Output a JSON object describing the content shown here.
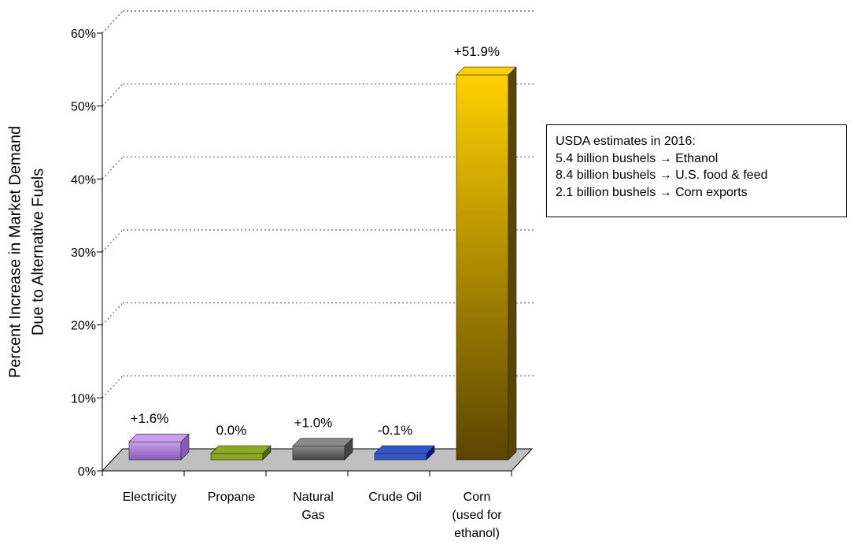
{
  "chart_data": {
    "type": "bar",
    "ylabel": [
      "Percent Increase in Market Demand",
      "Due to Alternative Fuels"
    ],
    "xlabel": "",
    "ylim": [
      0,
      60
    ],
    "ytick_values": [
      0,
      10,
      20,
      30,
      40,
      50,
      60
    ],
    "ytick_labels": [
      "0%",
      "10%",
      "20%",
      "30%",
      "40%",
      "50%",
      "60%"
    ],
    "grid": true,
    "categories": [
      {
        "lines": [
          "Electricity"
        ]
      },
      {
        "lines": [
          "Propane"
        ]
      },
      {
        "lines": [
          "Natural",
          "Gas"
        ]
      },
      {
        "lines": [
          "Crude Oil"
        ]
      },
      {
        "lines": [
          "Corn",
          "(used for",
          "ethanol)"
        ]
      }
    ],
    "values": [
      1.6,
      0.0,
      1.0,
      -0.1,
      51.9
    ],
    "data_labels": [
      "+1.6%",
      "0.0%",
      "+1.0%",
      "-0.1%",
      "+51.9%"
    ],
    "bar_colors": [
      {
        "light": "#c9a0ee",
        "dark": "#8a5ab8"
      },
      {
        "light": "#8aaa22",
        "dark": "#4a6a06"
      },
      {
        "light": "#8a8a8a",
        "dark": "#444444"
      },
      {
        "light": "#3355c8",
        "dark": "#0a1a80"
      },
      {
        "light": "#ffd000",
        "dark": "#5a4400"
      }
    ],
    "annotation": {
      "lines": [
        "USDA estimates in 2016:",
        "5.4 billion bushels → Ethanol",
        "8.4 billion bushels → U.S. food &  feed",
        "2.1 billion bushels → Corn exports"
      ]
    }
  }
}
